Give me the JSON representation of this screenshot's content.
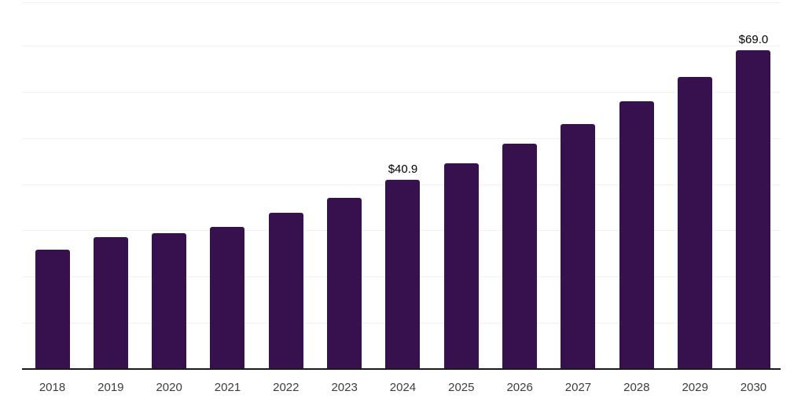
{
  "chart_data": {
    "type": "bar",
    "title": "",
    "xlabel": "",
    "ylabel": "",
    "categories": [
      "2018",
      "2019",
      "2020",
      "2021",
      "2022",
      "2023",
      "2024",
      "2025",
      "2026",
      "2027",
      "2028",
      "2029",
      "2030"
    ],
    "values": [
      25.9,
      28.5,
      29.4,
      30.8,
      33.8,
      37.1,
      40.9,
      44.6,
      48.7,
      53.1,
      58.0,
      63.2,
      69.0
    ],
    "data_labels": [
      "",
      "",
      "",
      "",
      "",
      "",
      "$40.9",
      "",
      "",
      "",
      "",
      "",
      "$69.0"
    ],
    "ylim": [
      0,
      79.4
    ],
    "gridline_interval": 10,
    "grid": true,
    "legend": false,
    "colors": {
      "bar": "#37114d",
      "axis_line": "#1a1a1a",
      "gridline": "#f2f2f2",
      "x_tick_label": "#3d3d3d",
      "data_label": "#000000",
      "background": "#ffffff"
    }
  }
}
